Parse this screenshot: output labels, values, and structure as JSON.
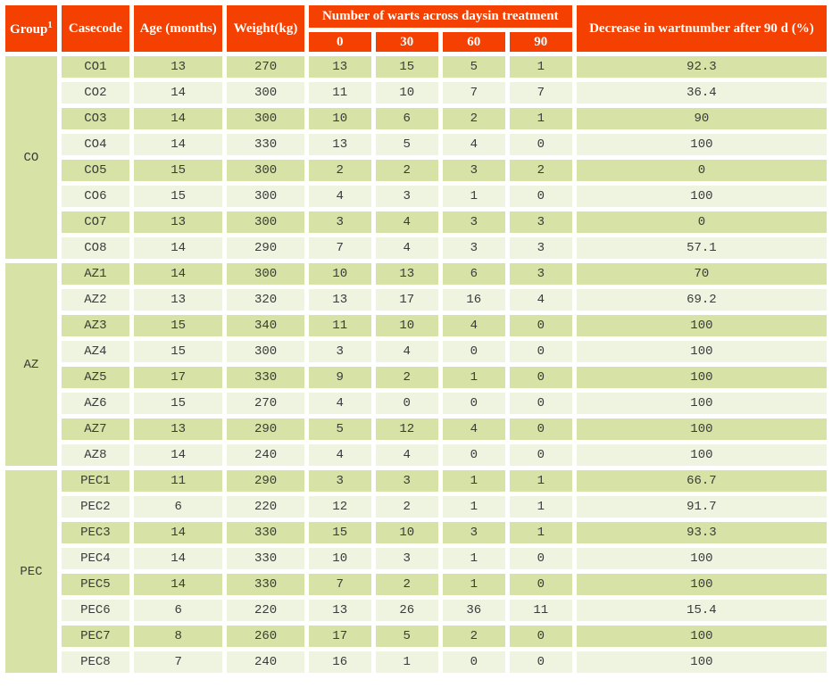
{
  "table": {
    "header": {
      "group_label": "Group",
      "group_footnote_mark": "1",
      "casecode_label": "Casecode",
      "age_label": "Age (months)",
      "weight_label": "Weight(kg)",
      "warts_span_label": "Number of warts across daysin treatment",
      "day_columns": [
        "0",
        "30",
        "60",
        "90"
      ],
      "decrease_label": "Decrease in wartnumber after 90 d (%)"
    },
    "groups": [
      {
        "name": "CO",
        "rows": [
          [
            "CO1",
            "13",
            "270",
            "13",
            "15",
            "5",
            "1",
            "92.3"
          ],
          [
            "CO2",
            "14",
            "300",
            "11",
            "10",
            "7",
            "7",
            "36.4"
          ],
          [
            "CO3",
            "14",
            "300",
            "10",
            "6",
            "2",
            "1",
            "90"
          ],
          [
            "CO4",
            "14",
            "330",
            "13",
            "5",
            "4",
            "0",
            "100"
          ],
          [
            "CO5",
            "15",
            "300",
            "2",
            "2",
            "3",
            "2",
            "0"
          ],
          [
            "CO6",
            "15",
            "300",
            "4",
            "3",
            "1",
            "0",
            "100"
          ],
          [
            "CO7",
            "13",
            "300",
            "3",
            "4",
            "3",
            "3",
            "0"
          ],
          [
            "CO8",
            "14",
            "290",
            "7",
            "4",
            "3",
            "3",
            "57.1"
          ]
        ]
      },
      {
        "name": "AZ",
        "rows": [
          [
            "AZ1",
            "14",
            "300",
            "10",
            "13",
            "6",
            "3",
            "70"
          ],
          [
            "AZ2",
            "13",
            "320",
            "13",
            "17",
            "16",
            "4",
            "69.2"
          ],
          [
            "AZ3",
            "15",
            "340",
            "11",
            "10",
            "4",
            "0",
            "100"
          ],
          [
            "AZ4",
            "15",
            "300",
            "3",
            "4",
            "0",
            "0",
            "100"
          ],
          [
            "AZ5",
            "17",
            "330",
            "9",
            "2",
            "1",
            "0",
            "100"
          ],
          [
            "AZ6",
            "15",
            "270",
            "4",
            "0",
            "0",
            "0",
            "100"
          ],
          [
            "AZ7",
            "13",
            "290",
            "5",
            "12",
            "4",
            "0",
            "100"
          ],
          [
            "AZ8",
            "14",
            "240",
            "4",
            "4",
            "0",
            "0",
            "100"
          ]
        ]
      },
      {
        "name": "PEC",
        "rows": [
          [
            "PEC1",
            "11",
            "290",
            "3",
            "3",
            "1",
            "1",
            "66.7"
          ],
          [
            "PEC2",
            "6",
            "220",
            "12",
            "2",
            "1",
            "1",
            "91.7"
          ],
          [
            "PEC3",
            "14",
            "330",
            "15",
            "10",
            "3",
            "1",
            "93.3"
          ],
          [
            "PEC4",
            "14",
            "330",
            "10",
            "3",
            "1",
            "0",
            "100"
          ],
          [
            "PEC5",
            "14",
            "330",
            "7",
            "2",
            "1",
            "0",
            "100"
          ],
          [
            "PEC6",
            "6",
            "220",
            "13",
            "26",
            "36",
            "11",
            "15.4"
          ],
          [
            "PEC7",
            "8",
            "260",
            "17",
            "5",
            "2",
            "0",
            "100"
          ],
          [
            "PEC8",
            "7",
            "240",
            "16",
            "1",
            "0",
            "0",
            "100"
          ]
        ]
      }
    ]
  },
  "colors": {
    "header_background": "#f44000",
    "header_text": "#ffffff",
    "row_band_dark": "#d6e2a6",
    "row_band_light": "#eff4e0",
    "body_text": "#3b3b3b",
    "grid_gap": "#ffffff"
  },
  "chart_data": {
    "type": "table",
    "title": "Number of warts across days in treatment and decrease after 90 d",
    "columns": [
      "Group",
      "Casecode",
      "Age (months)",
      "Weight(kg)",
      "Warts day 0",
      "Warts day 30",
      "Warts day 60",
      "Warts day 90",
      "Decrease in wart number after 90 d (%)"
    ],
    "rows": [
      [
        "CO",
        "CO1",
        13,
        270,
        13,
        15,
        5,
        1,
        92.3
      ],
      [
        "CO",
        "CO2",
        14,
        300,
        11,
        10,
        7,
        7,
        36.4
      ],
      [
        "CO",
        "CO3",
        14,
        300,
        10,
        6,
        2,
        1,
        90
      ],
      [
        "CO",
        "CO4",
        14,
        330,
        13,
        5,
        4,
        0,
        100
      ],
      [
        "CO",
        "CO5",
        15,
        300,
        2,
        2,
        3,
        2,
        0
      ],
      [
        "CO",
        "CO6",
        15,
        300,
        4,
        3,
        1,
        0,
        100
      ],
      [
        "CO",
        "CO7",
        13,
        300,
        3,
        4,
        3,
        3,
        0
      ],
      [
        "CO",
        "CO8",
        14,
        290,
        7,
        4,
        3,
        3,
        57.1
      ],
      [
        "AZ",
        "AZ1",
        14,
        300,
        10,
        13,
        6,
        3,
        70
      ],
      [
        "AZ",
        "AZ2",
        13,
        320,
        13,
        17,
        16,
        4,
        69.2
      ],
      [
        "AZ",
        "AZ3",
        15,
        340,
        11,
        10,
        4,
        0,
        100
      ],
      [
        "AZ",
        "AZ4",
        15,
        300,
        3,
        4,
        0,
        0,
        100
      ],
      [
        "AZ",
        "AZ5",
        17,
        330,
        9,
        2,
        1,
        0,
        100
      ],
      [
        "AZ",
        "AZ6",
        15,
        270,
        4,
        0,
        0,
        0,
        100
      ],
      [
        "AZ",
        "AZ7",
        13,
        290,
        5,
        12,
        4,
        0,
        100
      ],
      [
        "AZ",
        "AZ8",
        14,
        240,
        4,
        4,
        0,
        0,
        100
      ],
      [
        "PEC",
        "PEC1",
        11,
        290,
        3,
        3,
        1,
        1,
        66.7
      ],
      [
        "PEC",
        "PEC2",
        6,
        220,
        12,
        2,
        1,
        1,
        91.7
      ],
      [
        "PEC",
        "PEC3",
        14,
        330,
        15,
        10,
        3,
        1,
        93.3
      ],
      [
        "PEC",
        "PEC4",
        14,
        330,
        10,
        3,
        1,
        0,
        100
      ],
      [
        "PEC",
        "PEC5",
        14,
        330,
        7,
        2,
        1,
        0,
        100
      ],
      [
        "PEC",
        "PEC6",
        6,
        220,
        13,
        26,
        36,
        11,
        15.4
      ],
      [
        "PEC",
        "PEC7",
        8,
        260,
        17,
        5,
        2,
        0,
        100
      ],
      [
        "PEC",
        "PEC8",
        7,
        240,
        16,
        1,
        0,
        0,
        100
      ]
    ]
  }
}
